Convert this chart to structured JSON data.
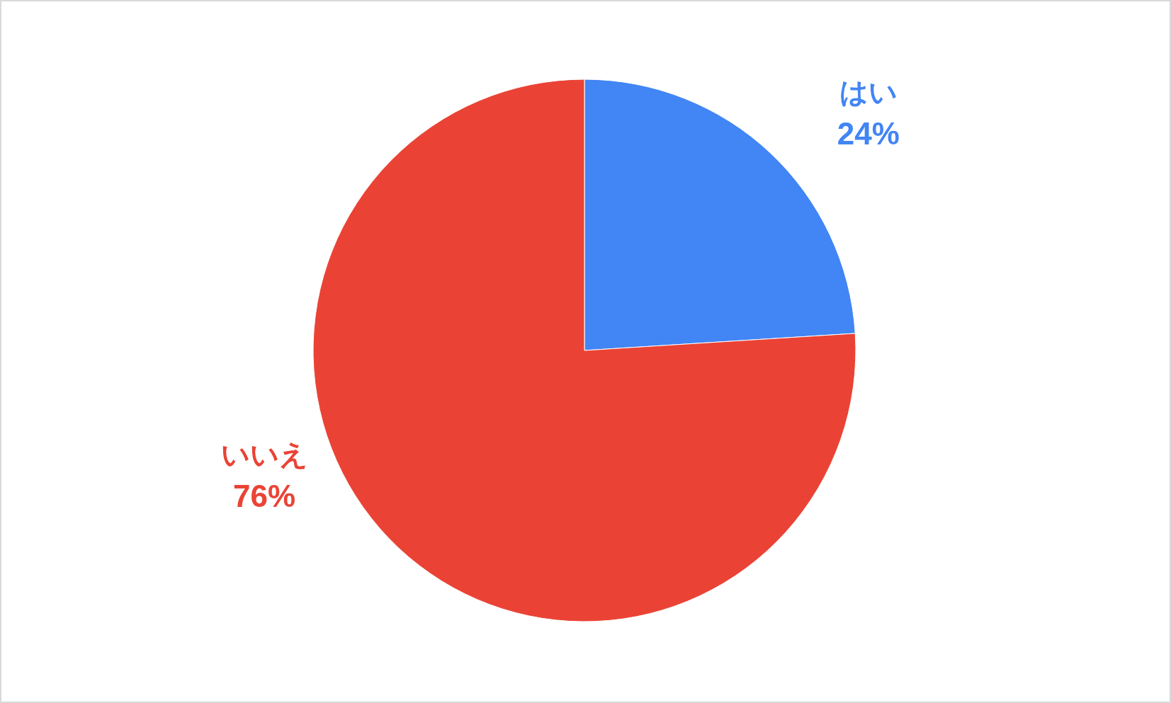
{
  "chart_data": {
    "type": "pie",
    "categories": [
      "はい",
      "いいえ"
    ],
    "values": [
      24,
      76
    ],
    "colors": [
      "#4285f4",
      "#ea4335"
    ],
    "value_labels": [
      "24%",
      "76%"
    ]
  }
}
